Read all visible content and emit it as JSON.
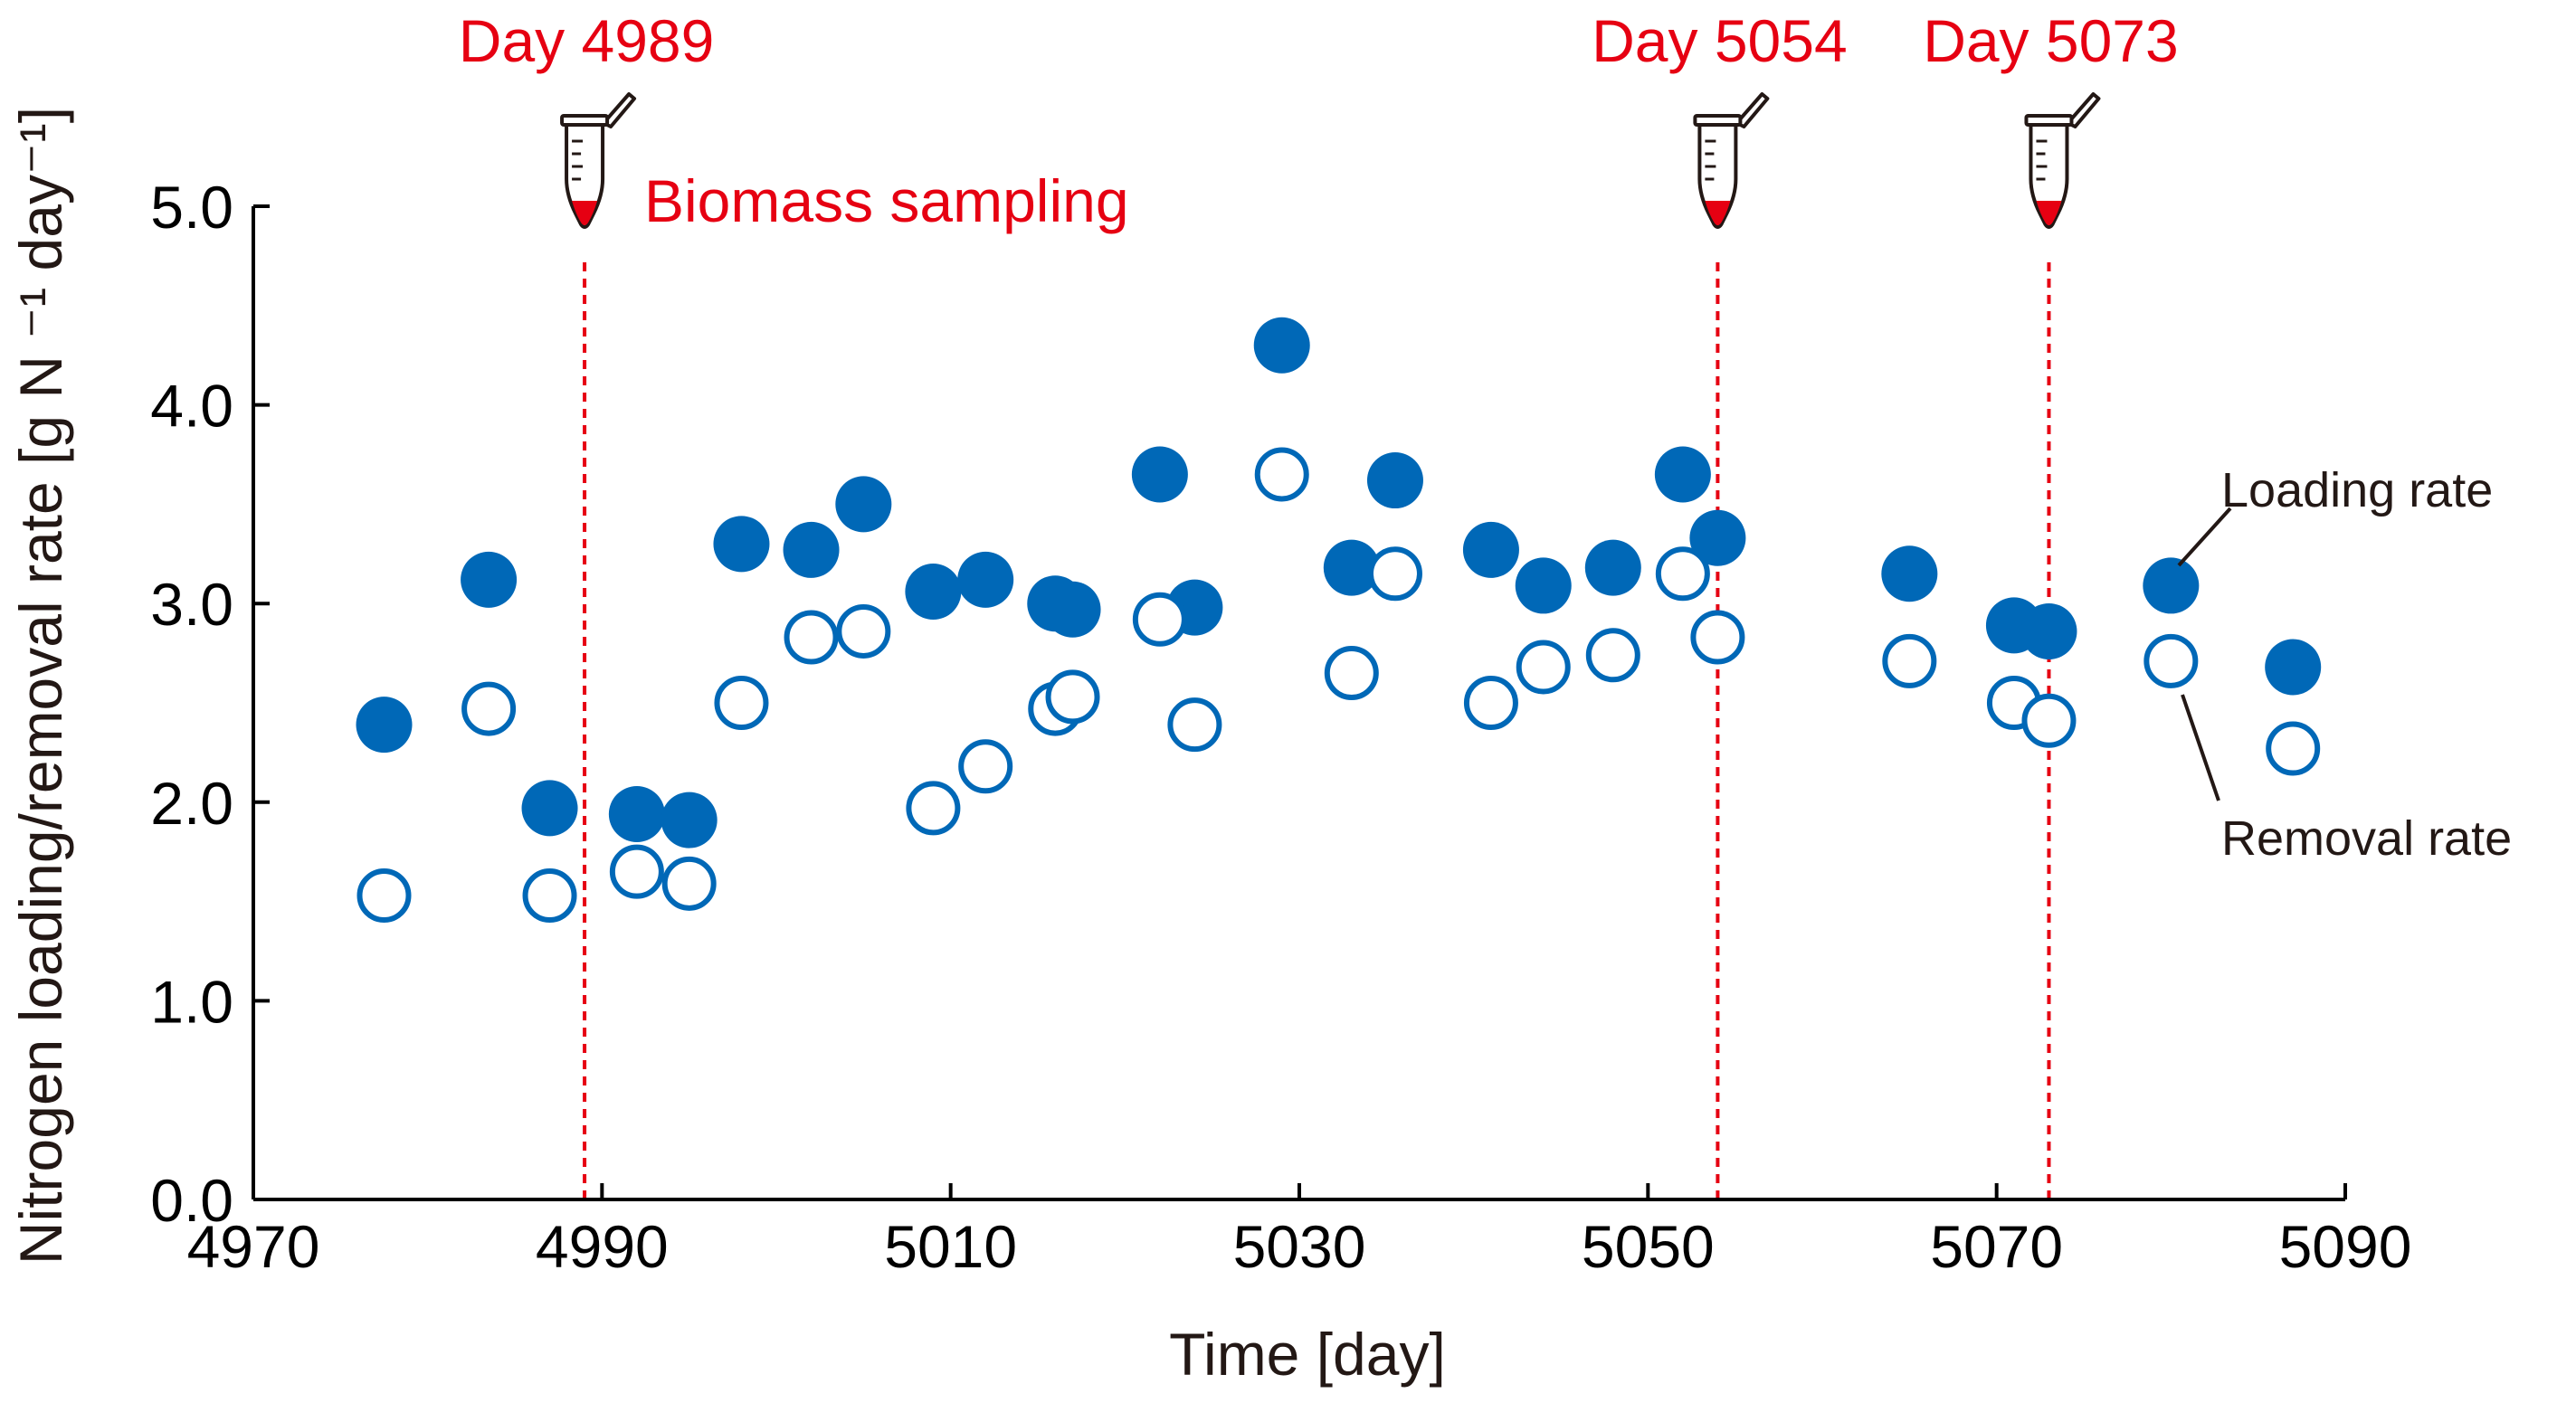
{
  "chart_data": {
    "type": "scatter",
    "xlabel": "Time [day]",
    "ylabel": "Nitrogen loading/removal rate [g N ⁻¹ day⁻¹]",
    "xlim": [
      4970,
      5090
    ],
    "ylim": [
      0,
      5
    ],
    "x_ticks": [
      4970,
      4990,
      5010,
      5030,
      5050,
      5070,
      5090
    ],
    "x_tick_labels": [
      "4970",
      "4990",
      "5010",
      "5030",
      "5050",
      "5070",
      "5090"
    ],
    "y_ticks": [
      0,
      1,
      2,
      3,
      4,
      5
    ],
    "y_tick_labels": [
      "0.0",
      "1.0",
      "2.0",
      "3.0",
      "4.0",
      "5.0"
    ],
    "series": [
      {
        "name": "Loading rate",
        "marker": "filled-circle",
        "color": "#0068b7",
        "x": [
          4977.5,
          4983.5,
          4987,
          4992,
          4995,
          4998,
          5002,
          5005,
          5009,
          5012,
          5016,
          5017,
          5022,
          5024,
          5029,
          5033,
          5035.5,
          5041,
          5044,
          5048,
          5052,
          5054,
          5065,
          5071,
          5073,
          5080,
          5087
        ],
        "y": [
          2.39,
          3.12,
          1.97,
          1.94,
          1.91,
          3.3,
          3.27,
          3.5,
          3.06,
          3.12,
          3.0,
          2.97,
          3.65,
          2.98,
          4.3,
          3.18,
          3.62,
          3.27,
          3.09,
          3.18,
          3.65,
          3.33,
          3.15,
          2.89,
          2.86,
          3.09,
          2.68
        ]
      },
      {
        "name": "Removal rate",
        "marker": "open-circle",
        "color": "#0068b7",
        "x": [
          4977.5,
          4983.5,
          4987,
          4992,
          4995,
          4998,
          5002,
          5005,
          5009,
          5012,
          5016,
          5017,
          5022,
          5024,
          5029,
          5033,
          5035.5,
          5041,
          5044,
          5048,
          5052,
          5054,
          5065,
          5071,
          5073,
          5080,
          5087
        ],
        "y": [
          1.53,
          2.47,
          1.53,
          1.65,
          1.59,
          2.5,
          2.83,
          2.86,
          1.97,
          2.18,
          2.47,
          2.53,
          2.92,
          2.39,
          3.65,
          2.65,
          3.15,
          2.5,
          2.68,
          2.74,
          3.15,
          2.83,
          2.71,
          2.5,
          2.41,
          2.71,
          2.27
        ]
      }
    ],
    "events": [
      {
        "x": 4989,
        "label": "Day 4989"
      },
      {
        "x": 5054,
        "label": "Day 5054"
      },
      {
        "x": 5073,
        "label": "Day 5073"
      }
    ],
    "annotation": "Biomass sampling",
    "event_color": "#e60012",
    "axis_color": "#000000"
  }
}
